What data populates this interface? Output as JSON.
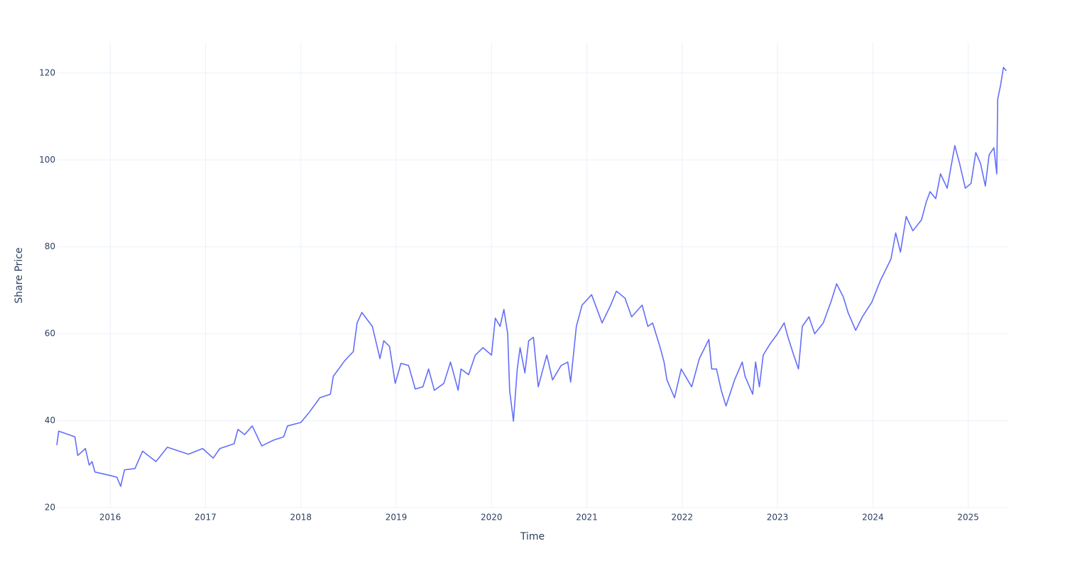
{
  "chart_data": {
    "type": "line",
    "xlabel": "Time",
    "ylabel": "Share Price",
    "x": [
      2015.44,
      2015.46,
      2015.63,
      2015.66,
      2015.74,
      2015.78,
      2015.81,
      2015.84,
      2016.0,
      2016.07,
      2016.11,
      2016.15,
      2016.26,
      2016.34,
      2016.48,
      2016.6,
      2016.82,
      2016.97,
      2017.08,
      2017.15,
      2017.3,
      2017.34,
      2017.41,
      2017.49,
      2017.59,
      2017.71,
      2017.82,
      2017.86,
      2018.0,
      2018.08,
      2018.2,
      2018.31,
      2018.34,
      2018.46,
      2018.55,
      2018.59,
      2018.64,
      2018.75,
      2018.83,
      2018.87,
      2018.93,
      2018.99,
      2019.05,
      2019.13,
      2019.2,
      2019.28,
      2019.34,
      2019.4,
      2019.5,
      2019.57,
      2019.65,
      2019.68,
      2019.76,
      2019.83,
      2019.91,
      2020.0,
      2020.04,
      2020.09,
      2020.13,
      2020.17,
      2020.19,
      2020.23,
      2020.27,
      2020.3,
      2020.35,
      2020.39,
      2020.44,
      2020.49,
      2020.54,
      2020.58,
      2020.64,
      2020.73,
      2020.8,
      2020.83,
      2020.89,
      2020.95,
      2021.05,
      2021.16,
      2021.25,
      2021.31,
      2021.4,
      2021.47,
      2021.58,
      2021.64,
      2021.69,
      2021.77,
      2021.81,
      2021.84,
      2021.92,
      2021.99,
      2022.07,
      2022.1,
      2022.18,
      2022.28,
      2022.31,
      2022.36,
      2022.41,
      2022.46,
      2022.55,
      2022.63,
      2022.66,
      2022.74,
      2022.77,
      2022.81,
      2022.85,
      2022.92,
      2023.0,
      2023.07,
      2023.11,
      2023.17,
      2023.22,
      2023.26,
      2023.33,
      2023.39,
      2023.48,
      2023.56,
      2023.62,
      2023.69,
      2023.74,
      2023.82,
      2023.89,
      2023.99,
      2024.08,
      2024.19,
      2024.24,
      2024.29,
      2024.35,
      2024.42,
      2024.51,
      2024.56,
      2024.6,
      2024.66,
      2024.71,
      2024.78,
      2024.86,
      2024.91,
      2024.97,
      2025.03,
      2025.08,
      2025.13,
      2025.18,
      2025.22,
      2025.27,
      2025.3,
      2025.31,
      2025.34,
      2025.37,
      2025.4
    ],
    "values": [
      34.4,
      37.6,
      36.3,
      32,
      33.6,
      29.8,
      30.6,
      28.2,
      27.4,
      27,
      24.9,
      28.7,
      29,
      33,
      30.6,
      33.9,
      32.3,
      33.6,
      31.4,
      33.6,
      34.7,
      38,
      36.8,
      38.8,
      34.2,
      35.5,
      36.3,
      38.8,
      39.6,
      41.7,
      45.3,
      46.1,
      50.2,
      53.8,
      55.9,
      62.5,
      64.9,
      61.7,
      54.3,
      58.4,
      57.1,
      48.6,
      53.2,
      52.7,
      47.3,
      47.8,
      51.9,
      47,
      48.6,
      53.5,
      47,
      51.9,
      50.6,
      55.1,
      56.8,
      55.1,
      63.6,
      61.7,
      65.6,
      60,
      47,
      39.9,
      51.9,
      56.8,
      51,
      58.4,
      59.2,
      47.8,
      51.9,
      55.1,
      49.4,
      52.7,
      53.5,
      48.9,
      61.7,
      66.6,
      69,
      62.5,
      66.6,
      69.8,
      68.2,
      63.9,
      66.6,
      61.7,
      62.5,
      56.8,
      53.5,
      49.4,
      45.3,
      51.9,
      48.9,
      47.8,
      54.3,
      58.7,
      51.9,
      51.9,
      47,
      43.4,
      49.4,
      53.5,
      50.2,
      46.1,
      53.5,
      47.8,
      55.1,
      57.6,
      60,
      62.5,
      59.2,
      55.1,
      51.9,
      61.7,
      63.9,
      60,
      62.5,
      67.3,
      71.5,
      68.5,
      64.9,
      60.8,
      63.9,
      67.3,
      72.3,
      77.2,
      83.2,
      78.8,
      87,
      83.7,
      86.2,
      90.3,
      92.7,
      91.1,
      96.8,
      93.5,
      103.3,
      99.2,
      93.5,
      94.6,
      101.7,
      99.2,
      94,
      101.2,
      102.8,
      96.8,
      114,
      117.2,
      121.3,
      120.5
    ],
    "color": "#636efa",
    "xlim": [
      2015.44,
      2025.42
    ],
    "xticks": [
      2016,
      2017,
      2018,
      2019,
      2020,
      2021,
      2022,
      2023,
      2024,
      2025
    ],
    "ylim": [
      20,
      127
    ],
    "yticks": [
      20,
      40,
      60,
      80,
      100,
      120
    ],
    "grid": true
  }
}
